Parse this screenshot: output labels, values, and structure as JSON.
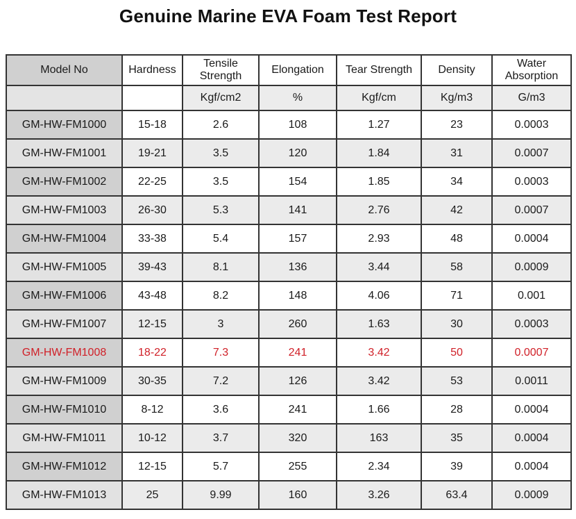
{
  "title": "Genuine Marine EVA Foam Test Report",
  "table": {
    "columns": [
      "Model No",
      "Hardness",
      "Tensile Strength",
      "Elongation",
      "Tear Strength",
      "Density",
      "Water Absorption"
    ],
    "units": [
      "",
      "",
      "Kgf/cm2",
      "%",
      "Kgf/cm",
      "Kg/m3",
      "G/m3"
    ],
    "rows": [
      {
        "cells": [
          "GM-HW-FM1000",
          "15-18",
          "2.6",
          "108",
          "1.27",
          "23",
          "0.0003"
        ],
        "highlight": false
      },
      {
        "cells": [
          "GM-HW-FM1001",
          "19-21",
          "3.5",
          "120",
          "1.84",
          "31",
          "0.0007"
        ],
        "highlight": false
      },
      {
        "cells": [
          "GM-HW-FM1002",
          "22-25",
          "3.5",
          "154",
          "1.85",
          "34",
          "0.0003"
        ],
        "highlight": false
      },
      {
        "cells": [
          "GM-HW-FM1003",
          "26-30",
          "5.3",
          "141",
          "2.76",
          "42",
          "0.0007"
        ],
        "highlight": false
      },
      {
        "cells": [
          "GM-HW-FM1004",
          "33-38",
          "5.4",
          "157",
          "2.93",
          "48",
          "0.0004"
        ],
        "highlight": false
      },
      {
        "cells": [
          "GM-HW-FM1005",
          "39-43",
          "8.1",
          "136",
          "3.44",
          "58",
          "0.0009"
        ],
        "highlight": false
      },
      {
        "cells": [
          "GM-HW-FM1006",
          "43-48",
          "8.2",
          "148",
          "4.06",
          "71",
          "0.001"
        ],
        "highlight": false
      },
      {
        "cells": [
          "GM-HW-FM1007",
          "12-15",
          "3",
          "260",
          "1.63",
          "30",
          "0.0003"
        ],
        "highlight": false
      },
      {
        "cells": [
          "GM-HW-FM1008",
          "18-22",
          "7.3",
          "241",
          "3.42",
          "50",
          "0.0007"
        ],
        "highlight": true
      },
      {
        "cells": [
          "GM-HW-FM1009",
          "30-35",
          "7.2",
          "126",
          "3.42",
          "53",
          "0.0011"
        ],
        "highlight": false
      },
      {
        "cells": [
          "GM-HW-FM1010",
          "8-12",
          "3.6",
          "241",
          "1.66",
          "28",
          "0.0004"
        ],
        "highlight": false
      },
      {
        "cells": [
          "GM-HW-FM1011",
          "10-12",
          "3.7",
          "320",
          "163",
          "35",
          "0.0004"
        ],
        "highlight": false
      },
      {
        "cells": [
          "GM-HW-FM1012",
          "12-15",
          "5.7",
          "255",
          "2.34",
          "39",
          "0.0004"
        ],
        "highlight": false
      },
      {
        "cells": [
          "GM-HW-FM1013",
          "25",
          "9.99",
          "160",
          "3.26",
          "63.4",
          "0.0009"
        ],
        "highlight": false
      }
    ],
    "colors": {
      "highlight_text": "#d02028",
      "model_column_dark": "#d0d0d0",
      "model_column_light": "#e2e2e2",
      "alt_row": "#ebebeb",
      "border": "#333333"
    }
  }
}
